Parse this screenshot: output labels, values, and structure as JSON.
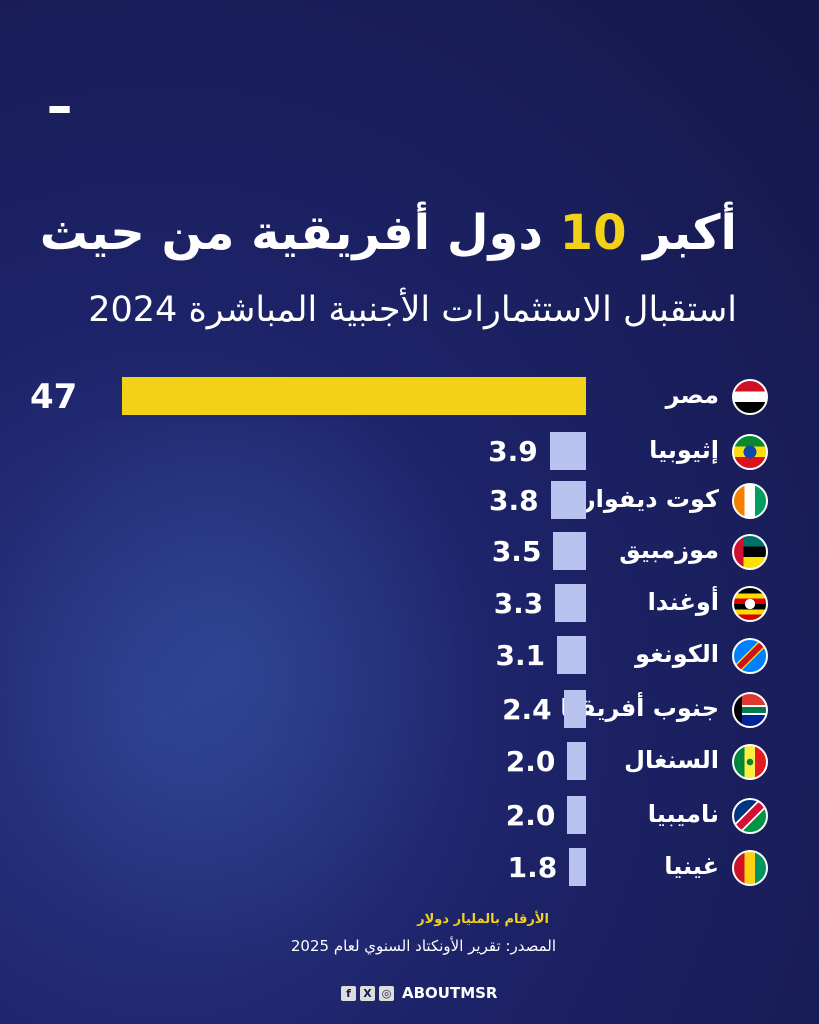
{
  "logo": "ـ",
  "title": {
    "before": "أكبر ",
    "highlight": "10",
    "after": " دول أفريقية من حيث"
  },
  "subtitle": "استقبال الاستثمارات الأجنبية المباشرة 2024",
  "chart_data": {
    "type": "bar",
    "orientation": "horizontal",
    "categories": [
      "مصر",
      "إثيوبيا",
      "كوت ديفوار",
      "موزمبيق",
      "أوغندا",
      "الكونغو",
      "جنوب أفريقيا",
      "السنغال",
      "ناميبيا",
      "غينيا"
    ],
    "values": [
      47,
      3.9,
      3.8,
      3.5,
      3.3,
      3.1,
      2.4,
      2.0,
      2.0,
      1.8
    ],
    "labels": [
      "47",
      "3.9",
      "3.8",
      "3.5",
      "3.3",
      "3.1",
      "2.4",
      "2.0",
      "2.0",
      "1.8"
    ],
    "flags": [
      "egypt",
      "ethiopia",
      "cote-divoire",
      "mozambique",
      "uganda",
      "drc",
      "south-africa",
      "senegal",
      "namibia",
      "guinea"
    ],
    "colors": {
      "highlight": "#f3d117",
      "bar": "#b8c4ef"
    },
    "unit_note": "الأرقام بالمليار دولار"
  },
  "footer": {
    "source": "المصدر: تقرير الأونكتاد السنوي لعام 2025",
    "brand": "ABOUTMSR",
    "social": [
      "f",
      "X",
      "◎"
    ]
  }
}
